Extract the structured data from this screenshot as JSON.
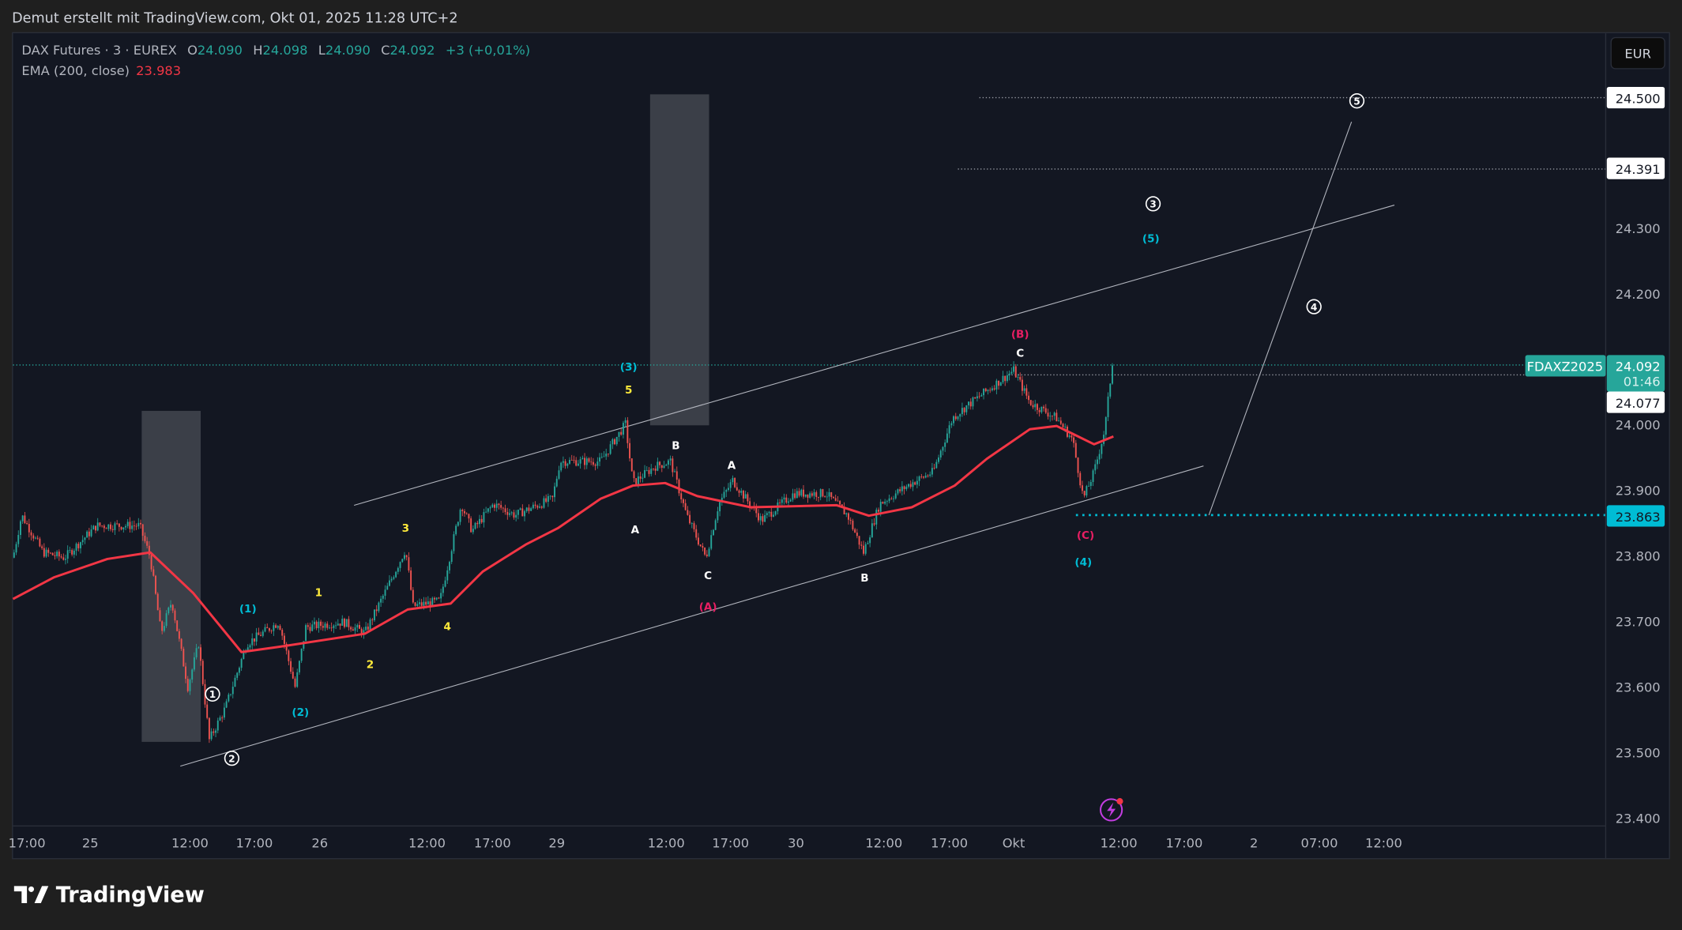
{
  "header": {
    "caption": "Demut erstellt mit TradingView.com, Okt 01, 2025 11:28 UTC+2"
  },
  "legend": {
    "symbol": "DAX Futures · 3 · EUREX",
    "o_label": "O",
    "o": "24.090",
    "h_label": "H",
    "h": "24.098",
    "l_label": "L",
    "l": "24.090",
    "c_label": "C",
    "c": "24.092",
    "change": "+3 (+0,01%)",
    "ema_label": "EMA (200, close)",
    "ema_value": "23.983"
  },
  "currency_button": "EUR",
  "ticker_tag": "FDAXZ2025",
  "price_tags": {
    "level_500": "24.500",
    "level_391": "24.391",
    "last": "24.092",
    "countdown": "01:46",
    "level_077": "24.077",
    "level_863": "23.863"
  },
  "logo": "TradingView",
  "colors": {
    "up": "#26a69a",
    "down": "#ef5350",
    "ema": "#f23645",
    "cyan": "#00bcd4",
    "yellow": "#ffeb3b",
    "pink": "#e91e63",
    "bg": "#131722"
  },
  "chart_data": {
    "type": "candlestick",
    "x_unit": "bar index",
    "price_ticks": [
      "24.300",
      "24.200",
      "24.000",
      "23.900",
      "23.800",
      "23.700",
      "23.600",
      "23.500",
      "23.400"
    ],
    "price_tick_values": [
      24300,
      24200,
      24000,
      23900,
      23800,
      23700,
      23600,
      23500,
      23400
    ],
    "time_ticks": [
      {
        "x": 25,
        "label": "17:00"
      },
      {
        "x": 84,
        "label": "25"
      },
      {
        "x": 177,
        "label": "12:00"
      },
      {
        "x": 237,
        "label": "17:00"
      },
      {
        "x": 298,
        "label": "26"
      },
      {
        "x": 398,
        "label": "12:00"
      },
      {
        "x": 459,
        "label": "17:00"
      },
      {
        "x": 519,
        "label": "29"
      },
      {
        "x": 621,
        "label": "12:00"
      },
      {
        "x": 681,
        "label": "17:00"
      },
      {
        "x": 742,
        "label": "30"
      },
      {
        "x": 824,
        "label": "12:00"
      },
      {
        "x": 885,
        "label": "17:00"
      },
      {
        "x": 945,
        "label": "Okt"
      },
      {
        "x": 1043,
        "label": "12:00"
      },
      {
        "x": 1104,
        "label": "17:00"
      },
      {
        "x": 1169,
        "label": "2"
      },
      {
        "x": 1230,
        "label": "07:00"
      },
      {
        "x": 1290,
        "label": "12:00"
      }
    ],
    "price_path": [
      [
        12,
        23798
      ],
      [
        20,
        23863
      ],
      [
        40,
        23806
      ],
      [
        60,
        23798
      ],
      [
        90,
        23847
      ],
      [
        130,
        23847
      ],
      [
        140,
        23798
      ],
      [
        150,
        23683
      ],
      [
        160,
        23732
      ],
      [
        175,
        23601
      ],
      [
        185,
        23667
      ],
      [
        195,
        23520
      ],
      [
        210,
        23569
      ],
      [
        230,
        23667
      ],
      [
        260,
        23700
      ],
      [
        275,
        23601
      ],
      [
        285,
        23692
      ],
      [
        320,
        23700
      ],
      [
        340,
        23683
      ],
      [
        360,
        23749
      ],
      [
        378,
        23811
      ],
      [
        385,
        23724
      ],
      [
        410,
        23732
      ],
      [
        430,
        23880
      ],
      [
        440,
        23839
      ],
      [
        460,
        23880
      ],
      [
        480,
        23863
      ],
      [
        515,
        23888
      ],
      [
        522,
        23945
      ],
      [
        560,
        23945
      ],
      [
        583,
        24002
      ],
      [
        590,
        23912
      ],
      [
        610,
        23937
      ],
      [
        625,
        23945
      ],
      [
        640,
        23863
      ],
      [
        658,
        23798
      ],
      [
        670,
        23880
      ],
      [
        683,
        23916
      ],
      [
        710,
        23855
      ],
      [
        740,
        23896
      ],
      [
        770,
        23896
      ],
      [
        790,
        23863
      ],
      [
        805,
        23806
      ],
      [
        820,
        23880
      ],
      [
        850,
        23912
      ],
      [
        870,
        23929
      ],
      [
        888,
        24011
      ],
      [
        900,
        24028
      ],
      [
        945,
        24084
      ],
      [
        960,
        24035
      ],
      [
        985,
        24011
      ],
      [
        1000,
        23978
      ],
      [
        1010,
        23888
      ],
      [
        1020,
        23929
      ],
      [
        1030,
        23994
      ],
      [
        1037,
        24096
      ]
    ],
    "ema_path": [
      [
        12,
        23735
      ],
      [
        50,
        23768
      ],
      [
        100,
        23796
      ],
      [
        140,
        23806
      ],
      [
        180,
        23744
      ],
      [
        225,
        23654
      ],
      [
        260,
        23662
      ],
      [
        340,
        23682
      ],
      [
        380,
        23719
      ],
      [
        420,
        23728
      ],
      [
        450,
        23777
      ],
      [
        490,
        23818
      ],
      [
        520,
        23843
      ],
      [
        560,
        23888
      ],
      [
        590,
        23908
      ],
      [
        620,
        23912
      ],
      [
        650,
        23892
      ],
      [
        700,
        23875
      ],
      [
        780,
        23878
      ],
      [
        810,
        23862
      ],
      [
        850,
        23875
      ],
      [
        890,
        23908
      ],
      [
        920,
        23949
      ],
      [
        960,
        23994
      ],
      [
        985,
        23999
      ],
      [
        1000,
        23987
      ],
      [
        1020,
        23971
      ],
      [
        1038,
        23983
      ]
    ],
    "boxes": [
      {
        "x1": 132,
        "x2": 187,
        "p1": 24022,
        "p2": 23517
      },
      {
        "x1": 606,
        "x2": 661,
        "p1": 24505,
        "p2": 24000
      }
    ],
    "trend_lines": [
      {
        "x1": 330,
        "p1": 23878,
        "x2": 1300,
        "p2": 24336
      },
      {
        "x1": 168,
        "p1": 23480,
        "x2": 1122,
        "p2": 23938
      },
      {
        "x1": 1127,
        "p1": 23863,
        "x2": 1260,
        "p2": 24463
      }
    ],
    "wave_labels": [
      {
        "x": 198,
        "p": 23590,
        "t": "1",
        "style": "circle"
      },
      {
        "x": 216,
        "p": 23492,
        "t": "2",
        "style": "circle"
      },
      {
        "x": 1075,
        "p": 24338,
        "t": "3",
        "style": "circle"
      },
      {
        "x": 1225,
        "p": 24181,
        "t": "4",
        "style": "circle"
      },
      {
        "x": 1265,
        "p": 24495,
        "t": "5",
        "style": "circle"
      },
      {
        "x": 231,
        "p": 23721,
        "t": "(1)",
        "style": "cyan"
      },
      {
        "x": 280,
        "p": 23563,
        "t": "(2)",
        "style": "cyan"
      },
      {
        "x": 586,
        "p": 24090,
        "t": "(3)",
        "style": "cyan"
      },
      {
        "x": 1010,
        "p": 23792,
        "t": "(4)",
        "style": "cyan"
      },
      {
        "x": 1073,
        "p": 24286,
        "t": "(5)",
        "style": "cyan"
      },
      {
        "x": 297,
        "p": 23746,
        "t": "1",
        "style": "yellow"
      },
      {
        "x": 345,
        "p": 23636,
        "t": "2",
        "style": "yellow"
      },
      {
        "x": 378,
        "p": 23844,
        "t": "3",
        "style": "yellow"
      },
      {
        "x": 417,
        "p": 23694,
        "t": "4",
        "style": "yellow"
      },
      {
        "x": 586,
        "p": 24055,
        "t": "5",
        "style": "yellow"
      },
      {
        "x": 592,
        "p": 23842,
        "t": "A",
        "style": "white"
      },
      {
        "x": 630,
        "p": 23970,
        "t": "B",
        "style": "white"
      },
      {
        "x": 660,
        "p": 23772,
        "t": "C",
        "style": "white"
      },
      {
        "x": 682,
        "p": 23940,
        "t": "A",
        "style": "white"
      },
      {
        "x": 806,
        "p": 23768,
        "t": "B",
        "style": "white"
      },
      {
        "x": 951,
        "p": 24111,
        "t": "C",
        "style": "white"
      },
      {
        "x": 660,
        "p": 23724,
        "t": "(A)",
        "style": "pink"
      },
      {
        "x": 951,
        "p": 24140,
        "t": "(B)",
        "style": "pink"
      },
      {
        "x": 1012,
        "p": 23833,
        "t": "(C)",
        "style": "pink"
      }
    ]
  }
}
